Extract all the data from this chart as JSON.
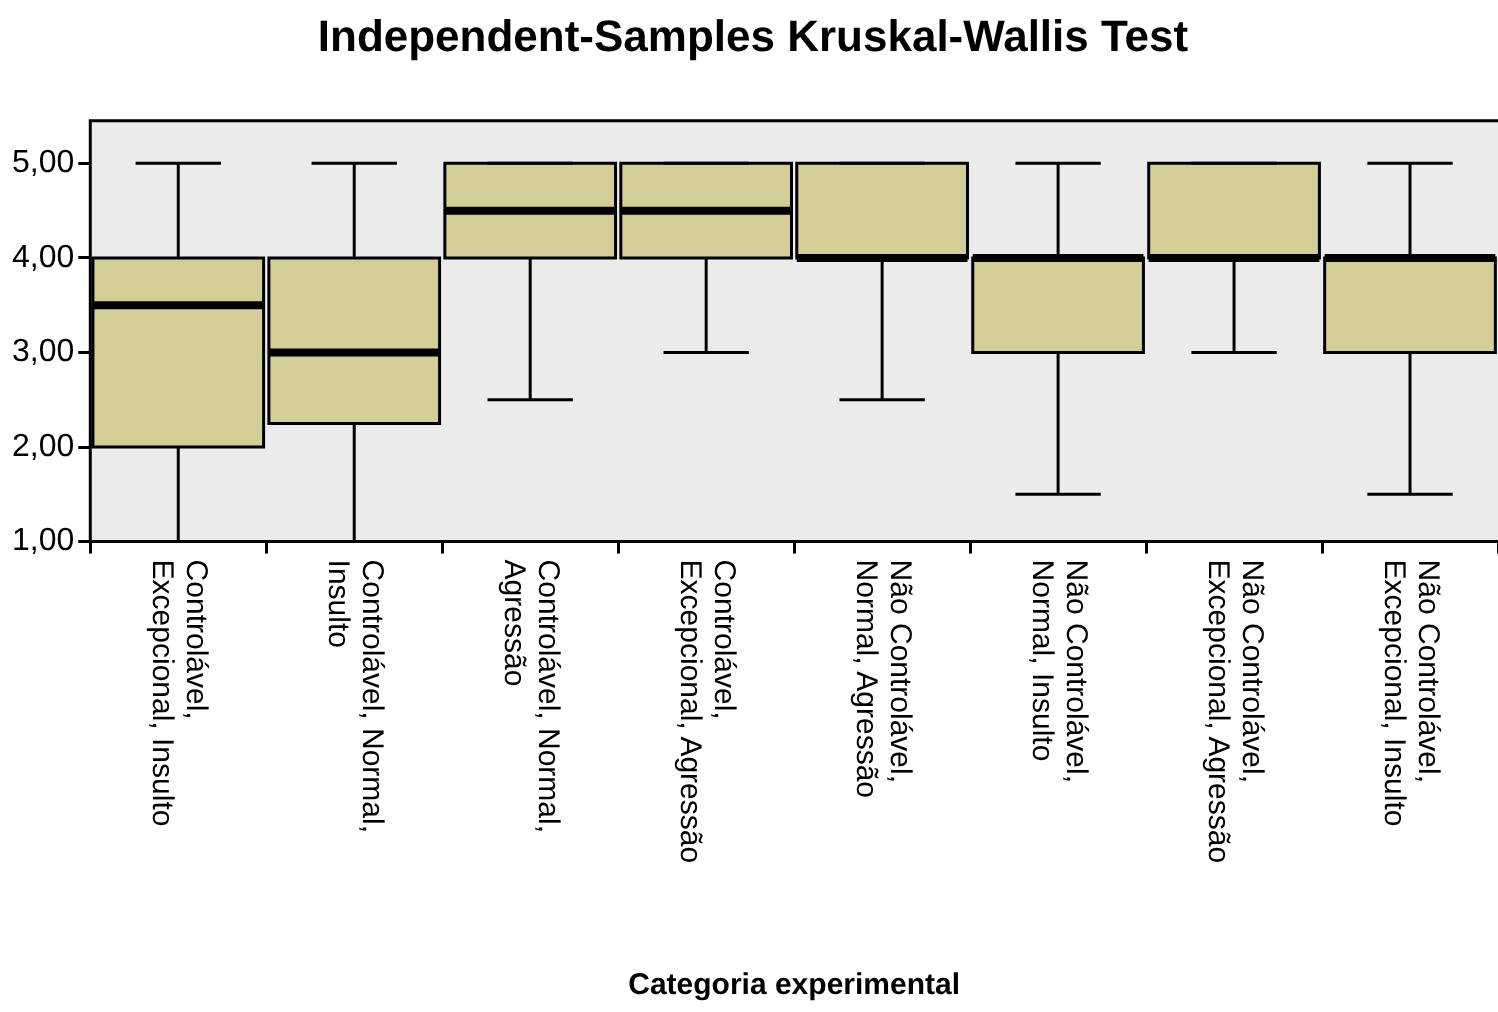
{
  "chart_data": {
    "type": "box",
    "title": "Independent-Samples Kruskal-Wallis Test",
    "xlabel": "Categoria experimental",
    "categories": [
      "Controlável, Excepcional, Insulto",
      "Controlável, Normal, Insulto",
      "Controlável, Normal, Agressão",
      "Controlável, Excepcional, Agressão",
      "Não Controlável, Normal, Agressão",
      "Não Controlável, Normal, Insulto",
      "Não Controlável, Excepcional, Agressão",
      "Não Controlável, Excepcional, Insulto"
    ],
    "boxes": [
      {
        "low": 1,
        "q1": 2,
        "median": 3.5,
        "q3": 4,
        "high": 5
      },
      {
        "low": 1,
        "q1": 2.25,
        "median": 3,
        "q3": 4,
        "high": 5
      },
      {
        "low": 2.5,
        "q1": 4,
        "median": 4.5,
        "q3": 5,
        "high": 5
      },
      {
        "low": 3,
        "q1": 4,
        "median": 4.5,
        "q3": 5,
        "high": 5
      },
      {
        "low": 2.5,
        "q1": 4,
        "median": 4,
        "q3": 5,
        "high": 5
      },
      {
        "low": 1.5,
        "q1": 3,
        "median": 4,
        "q3": 4,
        "high": 5
      },
      {
        "low": 3,
        "q1": 4,
        "median": 4,
        "q3": 5,
        "high": 5
      },
      {
        "low": 1.5,
        "q1": 3,
        "median": 4,
        "q3": 4,
        "high": 5
      }
    ],
    "color": "#d3ce97",
    "ylim": [
      1,
      5.45
    ],
    "yticks": [
      {
        "value": 1,
        "label": "1,00"
      },
      {
        "value": 2,
        "label": "2,00"
      },
      {
        "value": 3,
        "label": "3,00"
      },
      {
        "value": 4,
        "label": "4,00"
      },
      {
        "value": 5,
        "label": "5,00"
      }
    ],
    "grid": false,
    "legend": false
  }
}
